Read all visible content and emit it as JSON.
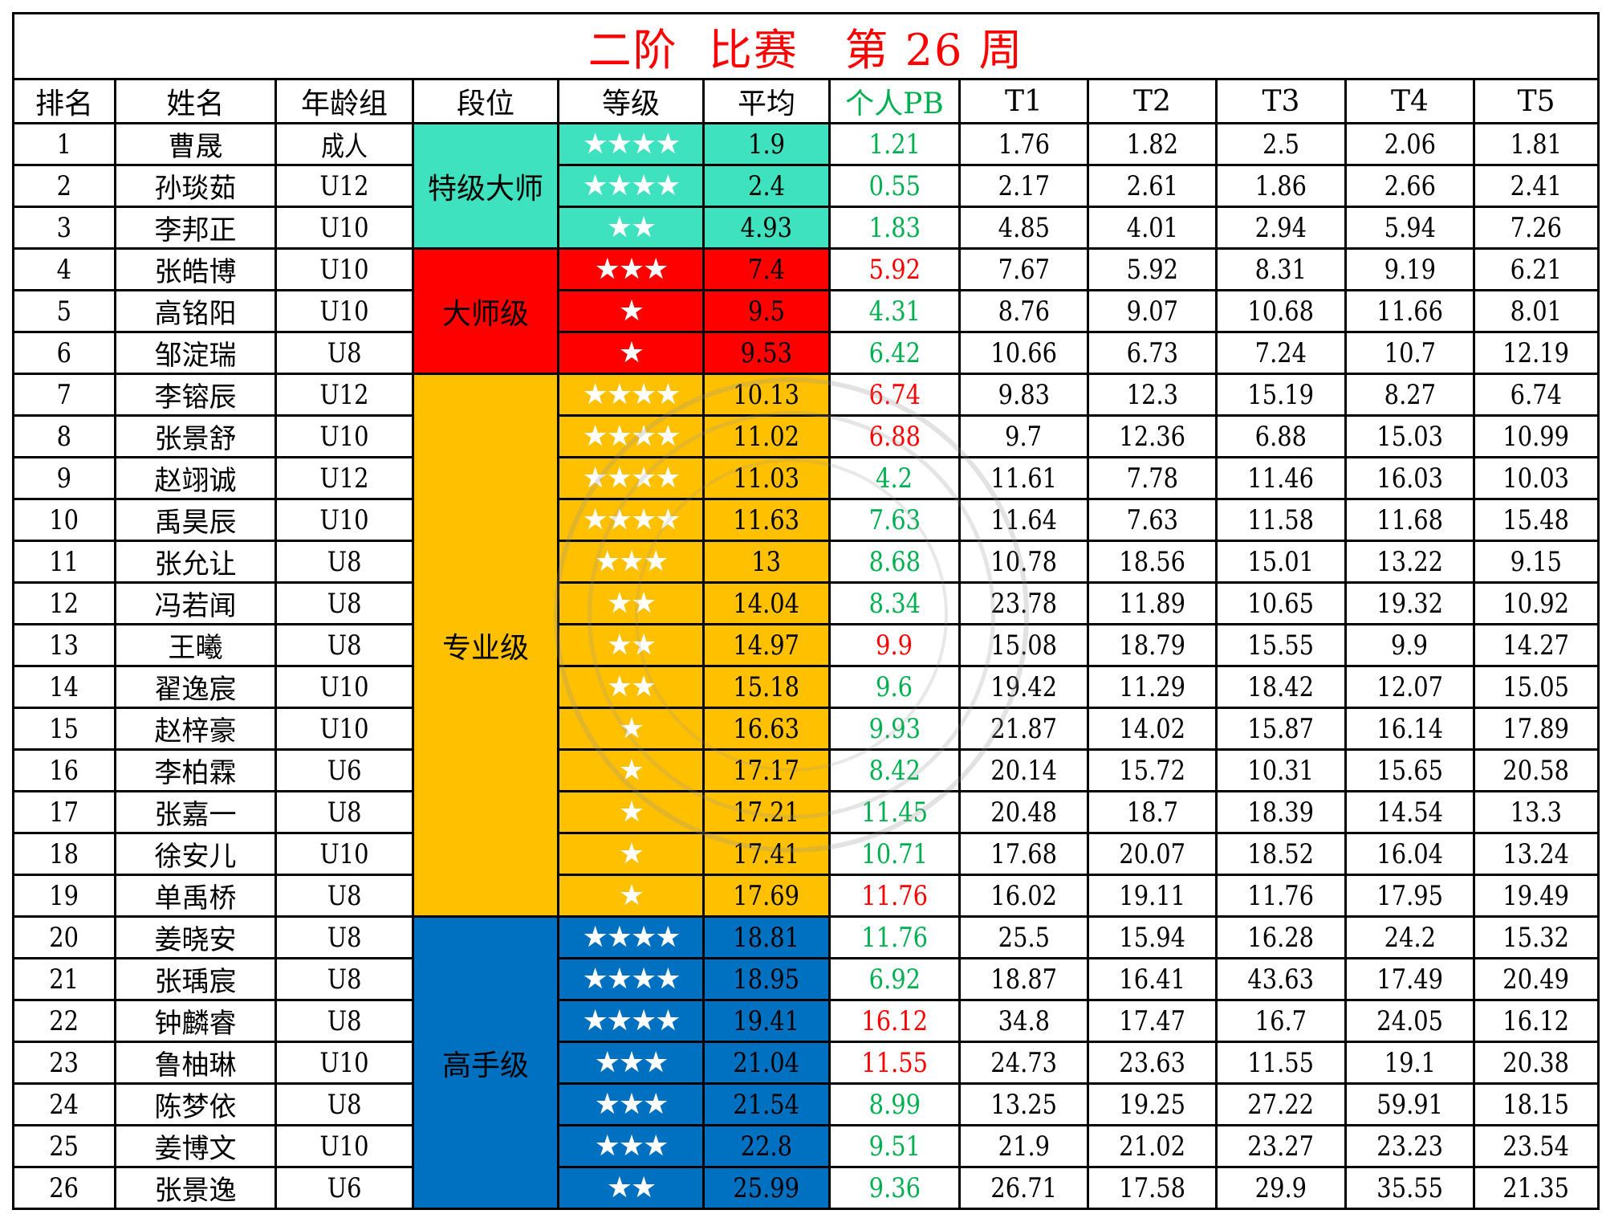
{
  "title": "二阶  比赛   第 26 周",
  "colors": {
    "title": "#FF0000",
    "pb_green": "#00B050",
    "pb_red": "#FF0000",
    "tier_grandmaster": "#3EE2BF",
    "tier_master": "#FF0000",
    "tier_pro": "#FFC000",
    "tier_expert": "#0070C0",
    "star": "#FFFFFF"
  },
  "headers": [
    "排名",
    "姓名",
    "年龄组",
    "段位",
    "等级",
    "平均",
    "个人PB",
    "T1",
    "T2",
    "T3",
    "T4",
    "T5"
  ],
  "tiers": [
    {
      "label": "特级大师",
      "rows": 3,
      "color": "#3EE2BF"
    },
    {
      "label": "大师级",
      "rows": 3,
      "color": "#FF0000"
    },
    {
      "label": "专业级",
      "rows": 13,
      "color": "#FFC000"
    },
    {
      "label": "高手级",
      "rows": 7,
      "color": "#0070C0"
    }
  ],
  "rows": [
    {
      "rank": "1",
      "name": "曹晟",
      "age": "成人",
      "stars": "★★★★",
      "avg": "1.9",
      "pb": "1.21",
      "pb_color": "green",
      "t": [
        "1.76",
        "1.82",
        "2.5",
        "2.06",
        "1.81"
      ]
    },
    {
      "rank": "2",
      "name": "孙琰茹",
      "age": "U12",
      "stars": "★★★★",
      "avg": "2.4",
      "pb": "0.55",
      "pb_color": "green",
      "t": [
        "2.17",
        "2.61",
        "1.86",
        "2.66",
        "2.41"
      ]
    },
    {
      "rank": "3",
      "name": "李邦正",
      "age": "U10",
      "stars": "★★",
      "avg": "4.93",
      "pb": "1.83",
      "pb_color": "green",
      "t": [
        "4.85",
        "4.01",
        "2.94",
        "5.94",
        "7.26"
      ]
    },
    {
      "rank": "4",
      "name": "张皓博",
      "age": "U10",
      "stars": "★★★",
      "avg": "7.4",
      "pb": "5.92",
      "pb_color": "red",
      "t": [
        "7.67",
        "5.92",
        "8.31",
        "9.19",
        "6.21"
      ]
    },
    {
      "rank": "5",
      "name": "高铭阳",
      "age": "U10",
      "stars": "★",
      "avg": "9.5",
      "pb": "4.31",
      "pb_color": "green",
      "t": [
        "8.76",
        "9.07",
        "10.68",
        "11.66",
        "8.01"
      ]
    },
    {
      "rank": "6",
      "name": "邹淀瑞",
      "age": "U8",
      "stars": "★",
      "avg": "9.53",
      "pb": "6.42",
      "pb_color": "green",
      "t": [
        "10.66",
        "6.73",
        "7.24",
        "10.7",
        "12.19"
      ]
    },
    {
      "rank": "7",
      "name": "李镕辰",
      "age": "U12",
      "stars": "★★★★",
      "avg": "10.13",
      "pb": "6.74",
      "pb_color": "red",
      "t": [
        "9.83",
        "12.3",
        "15.19",
        "8.27",
        "6.74"
      ]
    },
    {
      "rank": "8",
      "name": "张景舒",
      "age": "U10",
      "stars": "★★★★",
      "avg": "11.02",
      "pb": "6.88",
      "pb_color": "red",
      "t": [
        "9.7",
        "12.36",
        "6.88",
        "15.03",
        "10.99"
      ]
    },
    {
      "rank": "9",
      "name": "赵翊诚",
      "age": "U12",
      "stars": "★★★★",
      "avg": "11.03",
      "pb": "4.2",
      "pb_color": "green",
      "t": [
        "11.61",
        "7.78",
        "11.46",
        "16.03",
        "10.03"
      ]
    },
    {
      "rank": "10",
      "name": "禹昊辰",
      "age": "U10",
      "stars": "★★★★",
      "avg": "11.63",
      "pb": "7.63",
      "pb_color": "green",
      "t": [
        "11.64",
        "7.63",
        "11.58",
        "11.68",
        "15.48"
      ]
    },
    {
      "rank": "11",
      "name": "张允让",
      "age": "U8",
      "stars": "★★★",
      "avg": "13",
      "pb": "8.68",
      "pb_color": "green",
      "t": [
        "10.78",
        "18.56",
        "15.01",
        "13.22",
        "9.15"
      ]
    },
    {
      "rank": "12",
      "name": "冯若闻",
      "age": "U8",
      "stars": "★★",
      "avg": "14.04",
      "pb": "8.34",
      "pb_color": "green",
      "t": [
        "23.78",
        "11.89",
        "10.65",
        "19.32",
        "10.92"
      ]
    },
    {
      "rank": "13",
      "name": "王曦",
      "age": "U8",
      "stars": "★★",
      "avg": "14.97",
      "pb": "9.9",
      "pb_color": "red",
      "t": [
        "15.08",
        "18.79",
        "15.55",
        "9.9",
        "14.27"
      ]
    },
    {
      "rank": "14",
      "name": "翟逸宸",
      "age": "U10",
      "stars": "★★",
      "avg": "15.18",
      "pb": "9.6",
      "pb_color": "green",
      "t": [
        "19.42",
        "11.29",
        "18.42",
        "12.07",
        "15.05"
      ]
    },
    {
      "rank": "15",
      "name": "赵梓豪",
      "age": "U10",
      "stars": "★",
      "avg": "16.63",
      "pb": "9.93",
      "pb_color": "green",
      "t": [
        "21.87",
        "14.02",
        "15.87",
        "16.14",
        "17.89"
      ]
    },
    {
      "rank": "16",
      "name": "李柏霖",
      "age": "U6",
      "stars": "★",
      "avg": "17.17",
      "pb": "8.42",
      "pb_color": "green",
      "t": [
        "20.14",
        "15.72",
        "10.31",
        "15.65",
        "20.58"
      ]
    },
    {
      "rank": "17",
      "name": "张嘉一",
      "age": "U8",
      "stars": "★",
      "avg": "17.21",
      "pb": "11.45",
      "pb_color": "green",
      "t": [
        "20.48",
        "18.7",
        "18.39",
        "14.54",
        "13.3"
      ]
    },
    {
      "rank": "18",
      "name": "徐安儿",
      "age": "U10",
      "stars": "★",
      "avg": "17.41",
      "pb": "10.71",
      "pb_color": "green",
      "t": [
        "17.68",
        "20.07",
        "18.52",
        "16.04",
        "13.24"
      ]
    },
    {
      "rank": "19",
      "name": "单禹桥",
      "age": "U8",
      "stars": "★",
      "avg": "17.69",
      "pb": "11.76",
      "pb_color": "red",
      "t": [
        "16.02",
        "19.11",
        "11.76",
        "17.95",
        "19.49"
      ]
    },
    {
      "rank": "20",
      "name": "姜晓安",
      "age": "U8",
      "stars": "★★★★",
      "avg": "18.81",
      "pb": "11.76",
      "pb_color": "green",
      "t": [
        "25.5",
        "15.94",
        "16.28",
        "24.2",
        "15.32"
      ]
    },
    {
      "rank": "21",
      "name": "张瑀宸",
      "age": "U8",
      "stars": "★★★★",
      "avg": "18.95",
      "pb": "6.92",
      "pb_color": "green",
      "t": [
        "18.87",
        "16.41",
        "43.63",
        "17.49",
        "20.49"
      ]
    },
    {
      "rank": "22",
      "name": "钟麟睿",
      "age": "U8",
      "stars": "★★★★",
      "avg": "19.41",
      "pb": "16.12",
      "pb_color": "red",
      "t": [
        "34.8",
        "17.47",
        "16.7",
        "24.05",
        "16.12"
      ]
    },
    {
      "rank": "23",
      "name": "鲁柚琳",
      "age": "U10",
      "stars": "★★★",
      "avg": "21.04",
      "pb": "11.55",
      "pb_color": "red",
      "t": [
        "24.73",
        "23.63",
        "11.55",
        "19.1",
        "20.38"
      ]
    },
    {
      "rank": "24",
      "name": "陈梦依",
      "age": "U8",
      "stars": "★★★",
      "avg": "21.54",
      "pb": "8.99",
      "pb_color": "green",
      "t": [
        "13.25",
        "19.25",
        "27.22",
        "59.91",
        "18.15"
      ]
    },
    {
      "rank": "25",
      "name": "姜博文",
      "age": "U10",
      "stars": "★★★",
      "avg": "22.8",
      "pb": "9.51",
      "pb_color": "green",
      "t": [
        "21.9",
        "21.02",
        "23.27",
        "23.23",
        "23.54"
      ]
    },
    {
      "rank": "26",
      "name": "张景逸",
      "age": "U6",
      "stars": "★★",
      "avg": "25.99",
      "pb": "9.36",
      "pb_color": "green",
      "t": [
        "26.71",
        "17.58",
        "29.9",
        "35.55",
        "21.35"
      ]
    }
  ]
}
